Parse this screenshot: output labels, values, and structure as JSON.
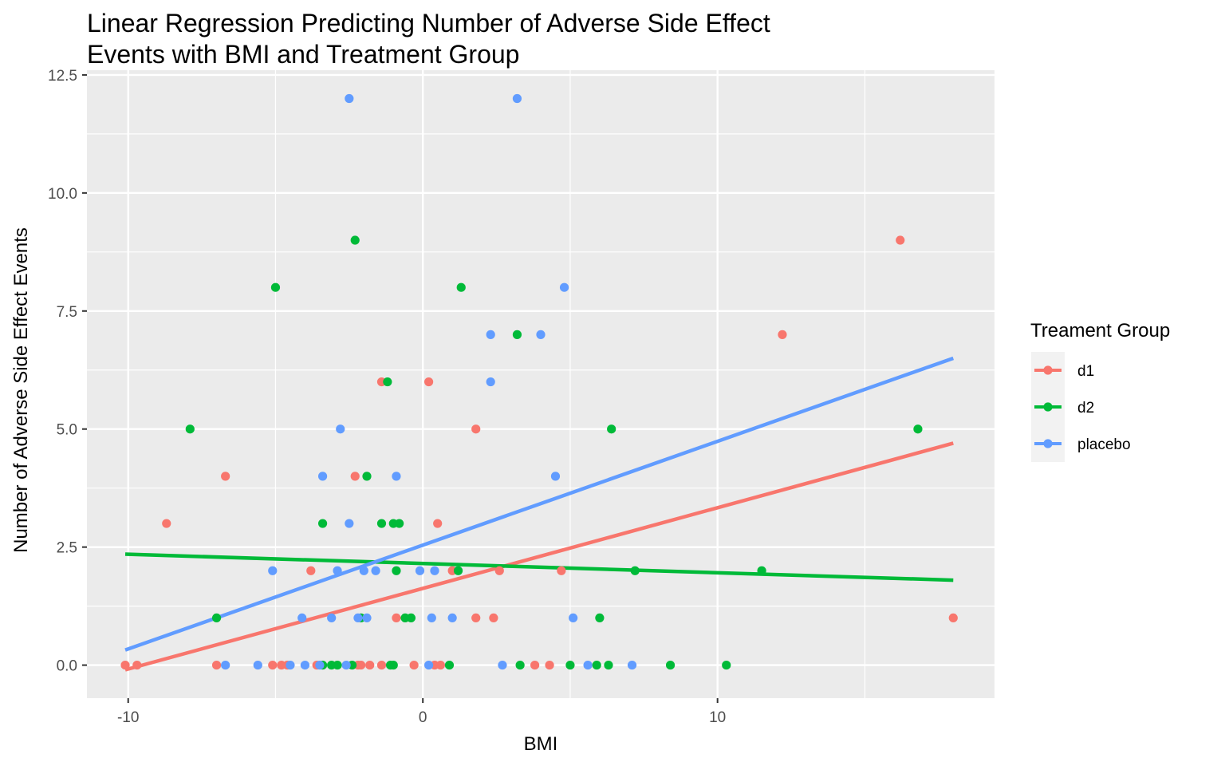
{
  "chart_data": {
    "type": "scatter",
    "title_lines": [
      "Linear Regression Predicting Number of Adverse Side Effect",
      "Events with BMI and Treatment Group"
    ],
    "xlabel": "BMI",
    "ylabel": "Number of Adverse Side Effect Events",
    "xlim": [
      -11.4,
      19.4
    ],
    "ylim": [
      -0.7,
      12.6
    ],
    "x_ticks": [
      -10,
      0,
      10
    ],
    "x_tick_labels": [
      "-10",
      "0",
      "10"
    ],
    "y_ticks": [
      0,
      2.5,
      5,
      7.5,
      10,
      12.5
    ],
    "y_tick_labels": [
      "0.0",
      "2.5",
      "5.0",
      "7.5",
      "10.0",
      "12.5"
    ],
    "grid": true,
    "legend": {
      "title": "Treament Group",
      "position": "right"
    },
    "series": [
      {
        "name": "d1",
        "color": "#F8766D",
        "points": [
          [
            -10.1,
            0
          ],
          [
            -9.7,
            0
          ],
          [
            -8.7,
            3
          ],
          [
            -7.0,
            0
          ],
          [
            -6.7,
            4
          ],
          [
            -5.1,
            0
          ],
          [
            -4.8,
            0
          ],
          [
            -4.6,
            0
          ],
          [
            -3.8,
            2
          ],
          [
            -3.6,
            0
          ],
          [
            -2.3,
            4
          ],
          [
            -2.2,
            0
          ],
          [
            -2.1,
            0
          ],
          [
            -1.8,
            0
          ],
          [
            -1.4,
            6
          ],
          [
            -1.4,
            0
          ],
          [
            -0.9,
            1
          ],
          [
            -0.3,
            0
          ],
          [
            0.2,
            6
          ],
          [
            0.4,
            0
          ],
          [
            0.5,
            3
          ],
          [
            0.6,
            0
          ],
          [
            1.0,
            2
          ],
          [
            1.8,
            1
          ],
          [
            1.8,
            5
          ],
          [
            2.4,
            1
          ],
          [
            2.6,
            2
          ],
          [
            3.8,
            0
          ],
          [
            4.3,
            0
          ],
          [
            4.7,
            2
          ],
          [
            12.2,
            7
          ],
          [
            16.2,
            9
          ],
          [
            18.0,
            1
          ]
        ],
        "fit_line": [
          [
            -10.1,
            -0.1
          ],
          [
            18.0,
            4.7
          ]
        ]
      },
      {
        "name": "d2",
        "color": "#00BA38",
        "points": [
          [
            -7.9,
            5
          ],
          [
            -7.0,
            1
          ],
          [
            -5.0,
            8
          ],
          [
            -3.4,
            3
          ],
          [
            -3.4,
            0
          ],
          [
            -3.1,
            0
          ],
          [
            -2.9,
            0
          ],
          [
            -2.4,
            0
          ],
          [
            -2.3,
            9
          ],
          [
            -2.1,
            1
          ],
          [
            -1.9,
            4
          ],
          [
            -1.4,
            3
          ],
          [
            -1.2,
            6
          ],
          [
            -1.1,
            0
          ],
          [
            -1.0,
            3
          ],
          [
            -1.0,
            0
          ],
          [
            -0.9,
            2
          ],
          [
            -0.8,
            3
          ],
          [
            -0.6,
            1
          ],
          [
            -0.4,
            1
          ],
          [
            0.9,
            0
          ],
          [
            1.2,
            2
          ],
          [
            1.3,
            8
          ],
          [
            3.2,
            7
          ],
          [
            3.3,
            0
          ],
          [
            5.0,
            0
          ],
          [
            5.9,
            0
          ],
          [
            6.0,
            1
          ],
          [
            6.3,
            0
          ],
          [
            6.4,
            5
          ],
          [
            7.2,
            2
          ],
          [
            8.4,
            0
          ],
          [
            10.3,
            0
          ],
          [
            11.5,
            2
          ],
          [
            16.8,
            5
          ]
        ],
        "fit_line": [
          [
            -10.1,
            2.35
          ],
          [
            18.0,
            1.8
          ]
        ]
      },
      {
        "name": "placebo",
        "color": "#619CFF",
        "points": [
          [
            -6.7,
            0
          ],
          [
            -5.6,
            0
          ],
          [
            -5.1,
            2
          ],
          [
            -4.5,
            0
          ],
          [
            -4.1,
            1
          ],
          [
            -4.0,
            0
          ],
          [
            -3.5,
            0
          ],
          [
            -3.4,
            4
          ],
          [
            -3.1,
            1
          ],
          [
            -2.9,
            2
          ],
          [
            -2.8,
            5
          ],
          [
            -2.6,
            0
          ],
          [
            -2.5,
            3
          ],
          [
            -2.5,
            12
          ],
          [
            -2.2,
            1
          ],
          [
            -2.0,
            2
          ],
          [
            -1.9,
            1
          ],
          [
            -1.6,
            2
          ],
          [
            -0.9,
            4
          ],
          [
            -0.1,
            2
          ],
          [
            0.2,
            0
          ],
          [
            0.3,
            1
          ],
          [
            0.4,
            2
          ],
          [
            1.0,
            1
          ],
          [
            2.7,
            0
          ],
          [
            2.3,
            7
          ],
          [
            2.3,
            6
          ],
          [
            3.2,
            12
          ],
          [
            4.0,
            7
          ],
          [
            4.5,
            4
          ],
          [
            4.8,
            8
          ],
          [
            5.1,
            1
          ],
          [
            5.6,
            0
          ],
          [
            7.1,
            0
          ]
        ],
        "fit_line": [
          [
            -10.1,
            0.32
          ],
          [
            18.0,
            6.5
          ]
        ]
      }
    ]
  }
}
